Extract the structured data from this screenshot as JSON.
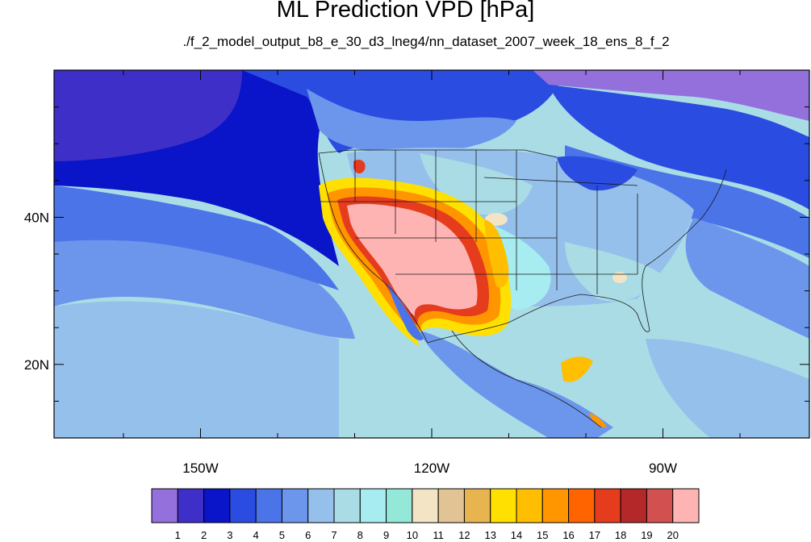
{
  "title": "ML Prediction VPD [hPa]",
  "subtitle": "./f_2_model_output_b8_e_30_d3_lneg4/nn_dataset_2007_week_18_ens_8_f_2",
  "map": {
    "lon_range": [
      -169,
      -71
    ],
    "lat_range": [
      10,
      60
    ],
    "lon_ticks": [
      {
        "value": -150,
        "label": "150W"
      },
      {
        "value": -120,
        "label": "120W"
      },
      {
        "value": -90,
        "label": "90W"
      }
    ],
    "lat_ticks": [
      {
        "value": 40,
        "label": "40N"
      },
      {
        "value": 20,
        "label": "20N"
      }
    ]
  },
  "colorbar": {
    "labels": [
      "1",
      "2",
      "3",
      "4",
      "5",
      "6",
      "7",
      "8",
      "9",
      "10",
      "11",
      "12",
      "13",
      "14",
      "15",
      "16",
      "17",
      "18",
      "19",
      "20"
    ],
    "colors": [
      "#9370db",
      "#3e2fc8",
      "#0a14c8",
      "#2a4ce0",
      "#4a74e8",
      "#6c96ec",
      "#96c0ec",
      "#aadce6",
      "#a6ecf0",
      "#94e8d8",
      "#f2e4c4",
      "#e2c494",
      "#e8b450",
      "#ffe000",
      "#ffbe00",
      "#ff9600",
      "#ff6400",
      "#e63c1e",
      "#b4282a",
      "#d25050",
      "#ffb4b4"
    ]
  }
}
